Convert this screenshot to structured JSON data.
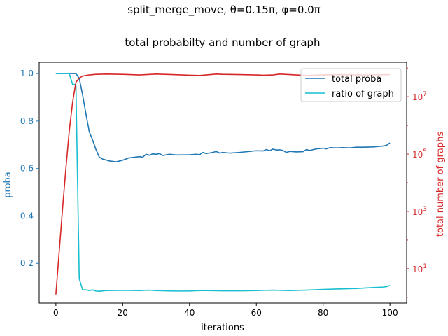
{
  "chart_data": {
    "type": "line",
    "title": "split_merge_move, θ=0.15π, φ=0.0π",
    "subtitle": "total probabilty and number of graph",
    "xlabel": "iterations",
    "ylabel_left": "proba",
    "ylabel_right": "total number of graphs",
    "xlim": [
      -5,
      105
    ],
    "ylim_left": [
      0.0325,
      1.0475
    ],
    "ylim_right_log10": [
      -0.2,
      8.2
    ],
    "x_ticks": [
      "0",
      "20",
      "40",
      "60",
      "80",
      "100"
    ],
    "y_ticks_left": [
      "0.2",
      "0.4",
      "0.6",
      "0.8",
      "1.0"
    ],
    "y_ticks_right": [
      "10",
      "10",
      "10",
      "10"
    ],
    "y_ticks_right_exp": [
      "1",
      "3",
      "5",
      "7"
    ],
    "legend": {
      "placement": "upper right",
      "entries": [
        "total proba",
        "ratio of graph"
      ]
    },
    "colors": {
      "left_axis": "#1f77b4",
      "right_axis": "#d62728",
      "series_proba": "#1f77b4",
      "series_ratio": "#17becf",
      "series_graphs": "#d62728"
    },
    "series": [
      {
        "name": "total proba",
        "axis": "left",
        "x": [
          0,
          2,
          4,
          6,
          7,
          8,
          9,
          10,
          11,
          12,
          13,
          14,
          16,
          18,
          20,
          22,
          25,
          26,
          27,
          28,
          29,
          30,
          31,
          32,
          34,
          36,
          40,
          42,
          43,
          44,
          45,
          47,
          48,
          49,
          50,
          52,
          55,
          58,
          60,
          62,
          63,
          64,
          65,
          66,
          67,
          68,
          69,
          70,
          72,
          74,
          75,
          76,
          78,
          80,
          81,
          82,
          84,
          86,
          88,
          90,
          92,
          95,
          98,
          99,
          100
        ],
        "y": [
          1.0,
          1.0,
          1.0,
          1.0,
          0.98,
          0.91,
          0.83,
          0.755,
          0.72,
          0.68,
          0.648,
          0.64,
          0.632,
          0.628,
          0.635,
          0.645,
          0.65,
          0.648,
          0.66,
          0.656,
          0.662,
          0.66,
          0.663,
          0.655,
          0.66,
          0.657,
          0.658,
          0.66,
          0.658,
          0.668,
          0.663,
          0.668,
          0.672,
          0.665,
          0.668,
          0.665,
          0.668,
          0.672,
          0.675,
          0.674,
          0.68,
          0.675,
          0.682,
          0.678,
          0.679,
          0.676,
          0.668,
          0.672,
          0.67,
          0.671,
          0.68,
          0.676,
          0.683,
          0.686,
          0.683,
          0.688,
          0.687,
          0.688,
          0.687,
          0.69,
          0.69,
          0.691,
          0.695,
          0.698,
          0.708
        ]
      },
      {
        "name": "ratio of graph",
        "axis": "left",
        "x": [
          0,
          2,
          4,
          5,
          6,
          7,
          8,
          9,
          10,
          11,
          12,
          13,
          15,
          20,
          25,
          28,
          30,
          35,
          40,
          43,
          45,
          50,
          55,
          60,
          65,
          70,
          75,
          80,
          85,
          90,
          95,
          98,
          99,
          100
        ],
        "y": [
          1.0,
          1.0,
          1.0,
          0.955,
          0.953,
          0.135,
          0.088,
          0.088,
          0.085,
          0.088,
          0.083,
          0.082,
          0.085,
          0.086,
          0.085,
          0.087,
          0.085,
          0.083,
          0.083,
          0.085,
          0.085,
          0.084,
          0.084,
          0.085,
          0.087,
          0.085,
          0.087,
          0.09,
          0.092,
          0.094,
          0.098,
          0.1,
          0.102,
          0.107
        ]
      },
      {
        "name": "",
        "axis": "right",
        "log10": true,
        "x": [
          0,
          1,
          2,
          3,
          4,
          5,
          6,
          7,
          8,
          9,
          10,
          12,
          15,
          20,
          25,
          30,
          35,
          40,
          43,
          45,
          48,
          50,
          55,
          60,
          62,
          65,
          67,
          70,
          75,
          80,
          85,
          90,
          95,
          100
        ],
        "y": [
          0.1,
          1.6,
          3.1,
          4.5,
          5.8,
          6.8,
          7.5,
          7.65,
          7.72,
          7.74,
          7.76,
          7.78,
          7.79,
          7.78,
          7.76,
          7.79,
          7.77,
          7.75,
          7.74,
          7.76,
          7.79,
          7.78,
          7.77,
          7.76,
          7.75,
          7.76,
          7.79,
          7.77,
          7.74,
          7.76,
          7.77,
          7.76,
          7.76,
          7.77
        ]
      }
    ]
  }
}
